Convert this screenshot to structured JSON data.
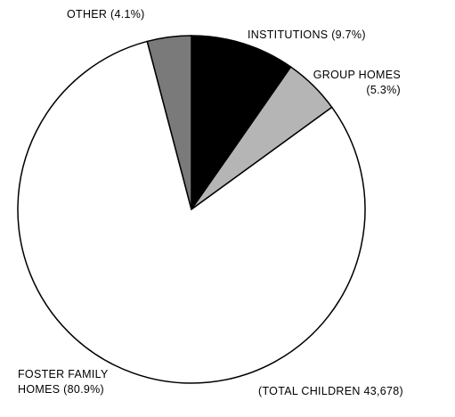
{
  "chart_data": {
    "type": "pie",
    "categories": [
      "INSTITUTIONS",
      "GROUP HOMES",
      "FOSTER FAMILY HOMES",
      "OTHER"
    ],
    "values": [
      9.7,
      5.3,
      80.9,
      4.1
    ],
    "value_labels": [
      "(9.7%)",
      "(5.3%)",
      "(80.9%)",
      "(4.1%)"
    ],
    "colors": [
      "#000000",
      "#b5b5b5",
      "#ffffff",
      "#7a7a7a"
    ],
    "annotation": "(TOTAL CHILDREN 43,678)"
  }
}
